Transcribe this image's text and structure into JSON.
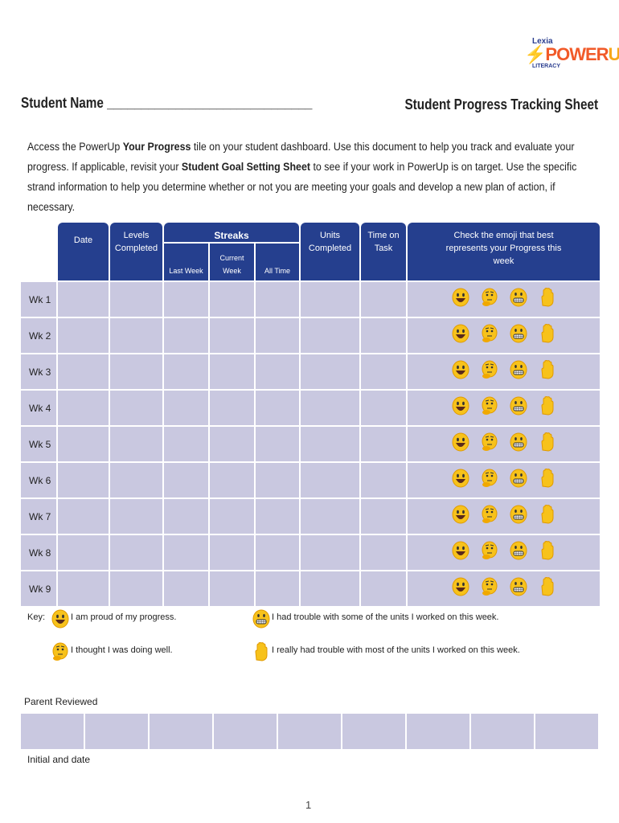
{
  "logo": {
    "brand": "Lexia",
    "product_a": "POWER",
    "product_b": "UP",
    "sub": "LITERACY"
  },
  "student_name_label": "Student Name ______________________________",
  "title": "Student Progress Tracking Sheet",
  "intro": {
    "p1": "Access the PowerUp ",
    "b1": "Your Progress",
    "p2": " tile on your student dashboard. Use this document to help you track and evaluate your progress. If applicable, revisit your ",
    "b2": "Student Goal Setting Sheet",
    "p3": " to see if your work in PowerUp is on target. Use the specific strand information to help you determine whether or not you are meeting your goals and develop a new plan of action, if necessary."
  },
  "table": {
    "headers": {
      "date": "Date",
      "levels": "Levels Completed",
      "streaks": "Streaks",
      "last_week": "Last Week",
      "current_week": "Current Week",
      "all_time": "All Time",
      "units": "Units Completed",
      "time": "Time on Task",
      "emoji": "Check the emoji that best represents  your Progress this week"
    },
    "rows": [
      "Wk 1",
      "Wk 2",
      "Wk 3",
      "Wk 4",
      "Wk 5",
      "Wk 6",
      "Wk 7",
      "Wk 8",
      "Wk 9"
    ],
    "emoji_icons": [
      "grinning-face-icon",
      "thinking-face-icon",
      "grimacing-face-icon",
      "raised-hand-icon"
    ]
  },
  "key": {
    "label": "Key:",
    "proud": "I am proud of my progress.",
    "thought": "I thought I was doing well.",
    "trouble_some": "I had trouble with some of the units I worked on this week.",
    "trouble_most": "I really had trouble with most of the units I worked on this week."
  },
  "parent_reviewed": "Parent Reviewed",
  "initial_date": "Initial and date",
  "page_number": "1",
  "colors": {
    "header": "#253f8e",
    "cell": "#c9c8e0",
    "emoji": "#f7c21b"
  }
}
